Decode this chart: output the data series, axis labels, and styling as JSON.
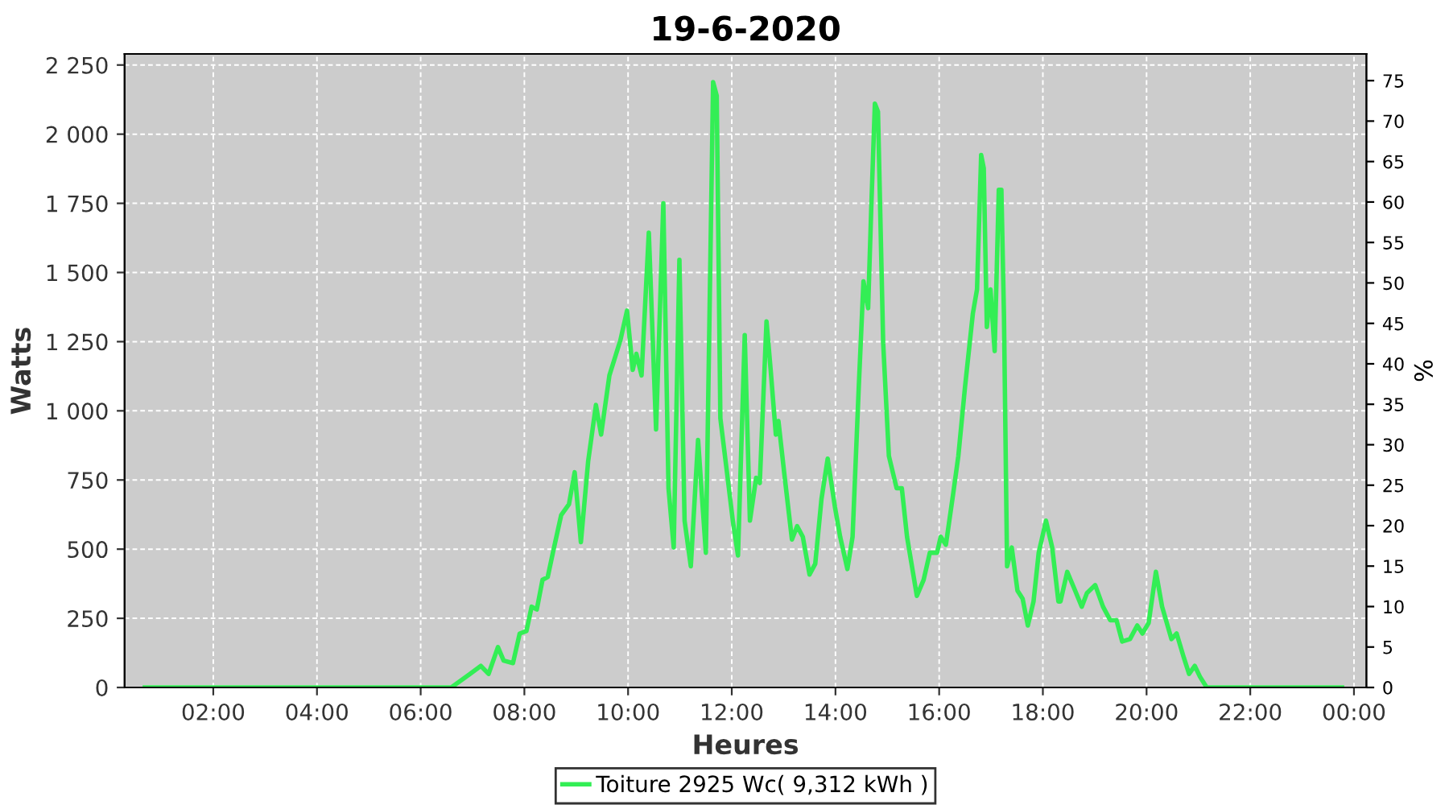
{
  "chart_data": {
    "type": "line",
    "title": "19-6-2020",
    "xlabel": "Heures",
    "ylabel": "Watts",
    "y2label": "%",
    "xlim": [
      0.29,
      24.24
    ],
    "xticks": [
      {
        "value": 2,
        "label": "02:00"
      },
      {
        "value": 4,
        "label": "04:00"
      },
      {
        "value": 6,
        "label": "06:00"
      },
      {
        "value": 8,
        "label": "08:00"
      },
      {
        "value": 10,
        "label": "10:00"
      },
      {
        "value": 12,
        "label": "12:00"
      },
      {
        "value": 14,
        "label": "14:00"
      },
      {
        "value": 16,
        "label": "16:00"
      },
      {
        "value": 18,
        "label": "18:00"
      },
      {
        "value": 20,
        "label": "20:00"
      },
      {
        "value": 22,
        "label": "22:00"
      },
      {
        "value": 24,
        "label": "00:00"
      }
    ],
    "ylim": [
      0,
      2290
    ],
    "yticks": [
      0,
      250,
      500,
      750,
      {
        "value": 1000,
        "label": "1 000"
      },
      {
        "value": 1250,
        "label": "1 250"
      },
      {
        "value": 1500,
        "label": "1 500"
      },
      {
        "value": 1750,
        "label": "1 750"
      },
      {
        "value": 2000,
        "label": "2 000"
      },
      {
        "value": 2250,
        "label": "2 250"
      }
    ],
    "y2lim": [
      0,
      78.3
    ],
    "y2ticks": [
      0,
      5,
      10,
      15,
      20,
      25,
      30,
      35,
      40,
      45,
      50,
      55,
      60,
      65,
      70,
      75
    ],
    "grid": true,
    "legend": "bottom",
    "marker": "none",
    "line_style": "solid",
    "series": [
      {
        "name": "Toiture 2925 Wc( 9,312 kWh )",
        "color": "#33ee55",
        "x": [
          0.68,
          6.59,
          6.95,
          7.16,
          7.31,
          7.49,
          7.6,
          7.78,
          7.91,
          8.04,
          8.14,
          8.24,
          8.35,
          8.45,
          8.55,
          8.71,
          8.86,
          8.97,
          9.09,
          9.23,
          9.38,
          9.48,
          9.64,
          9.85,
          9.98,
          10.09,
          10.16,
          10.26,
          10.4,
          10.54,
          10.68,
          10.78,
          10.88,
          10.99,
          11.09,
          11.21,
          11.35,
          11.5,
          11.64,
          11.71,
          11.78,
          11.92,
          12.02,
          12.12,
          12.25,
          12.35,
          12.47,
          12.54,
          12.67,
          12.75,
          12.85,
          12.9,
          13.01,
          13.16,
          13.26,
          13.37,
          13.5,
          13.61,
          13.73,
          13.85,
          13.99,
          14.09,
          14.23,
          14.33,
          14.45,
          14.54,
          14.63,
          14.69,
          14.76,
          14.82,
          14.92,
          15.03,
          15.18,
          15.28,
          15.38,
          15.57,
          15.7,
          15.82,
          15.96,
          16.03,
          16.13,
          16.27,
          16.37,
          16.5,
          16.65,
          16.73,
          16.81,
          16.86,
          16.92,
          16.99,
          17.07,
          17.15,
          17.2,
          17.25,
          17.31,
          17.4,
          17.51,
          17.61,
          17.71,
          17.82,
          17.92,
          18.06,
          18.18,
          18.3,
          18.34,
          18.47,
          18.6,
          18.75,
          18.85,
          19.01,
          19.16,
          19.3,
          19.42,
          19.53,
          19.68,
          19.82,
          19.92,
          20.04,
          20.18,
          20.3,
          20.48,
          20.58,
          20.72,
          20.82,
          20.93,
          21.03,
          21.16,
          23.77
        ],
        "values": [
          0,
          0,
          49,
          78,
          49,
          146,
          97,
          88,
          195,
          204,
          292,
          282,
          389,
          399,
          487,
          623,
          662,
          778,
          525,
          817,
          1021,
          914,
          1128,
          1254,
          1362,
          1148,
          1206,
          1128,
          1644,
          933,
          1750,
          720,
          506,
          1546,
          603,
          438,
          895,
          487,
          2188,
          2139,
          973,
          758,
          603,
          477,
          1274,
          603,
          758,
          739,
          1323,
          1148,
          914,
          963,
          778,
          535,
          583,
          545,
          408,
          447,
          681,
          827,
          652,
          545,
          428,
          545,
          1089,
          1468,
          1371,
          1731,
          2110,
          2081,
          1245,
          837,
          720,
          720,
          545,
          331,
          389,
          487,
          487,
          545,
          516,
          700,
          837,
          1089,
          1352,
          1439,
          1925,
          1877,
          1303,
          1439,
          1216,
          1799,
          1799,
          1342,
          438,
          506,
          350,
          321,
          224,
          311,
          487,
          603,
          506,
          311,
          311,
          418,
          360,
          292,
          341,
          370,
          292,
          243,
          243,
          166,
          175,
          224,
          195,
          233,
          418,
          292,
          175,
          195,
          107,
          49,
          78,
          39,
          0,
          0
        ]
      }
    ]
  }
}
